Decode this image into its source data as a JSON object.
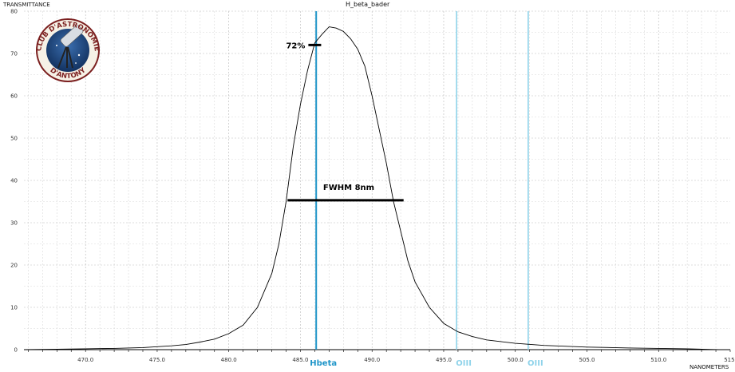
{
  "chart_data": {
    "type": "line",
    "title": "H_beta_bader",
    "ylabel": "TRANSMITTANCE",
    "xlabel": "NANOMETERS",
    "xlim": [
      465.7,
      515.0
    ],
    "ylim": [
      0,
      80
    ],
    "x_ticks": [
      470.0,
      475.0,
      480.0,
      485.0,
      490.0,
      495.0,
      500.0,
      505.0,
      510.0,
      515.0
    ],
    "x_tick_labels": [
      "470.0",
      "475.0",
      "480.0",
      "485.0",
      "490.0",
      "495.0",
      "500.0",
      "505.0",
      "510.0",
      "515."
    ],
    "y_ticks": [
      0,
      10,
      20,
      30,
      40,
      50,
      60,
      70,
      80
    ],
    "y_tick_labels": [
      "0",
      "10",
      "20",
      "30",
      "40",
      "50",
      "60",
      "70",
      "80"
    ],
    "grid": true,
    "series": [
      {
        "x": [
          465.7,
          468,
          470,
          472,
          474,
          476,
          477,
          478,
          479,
          480,
          481,
          482,
          483,
          483.5,
          484,
          484.5,
          485,
          485.5,
          486,
          486.5,
          487,
          487.5,
          488,
          488.5,
          489,
          489.5,
          490,
          490.5,
          491,
          491.5,
          492,
          492.5,
          493,
          494,
          495,
          496,
          497,
          498,
          500,
          502,
          505,
          508,
          510,
          512,
          514.2
        ],
        "y": [
          0,
          0.1,
          0.2,
          0.3,
          0.5,
          0.9,
          1.2,
          1.8,
          2.5,
          3.8,
          5.8,
          10,
          18,
          25,
          35,
          48,
          58,
          66,
          72.5,
          74.5,
          76.3,
          76,
          75.2,
          73.5,
          71,
          67,
          60,
          52,
          44,
          35,
          28,
          21,
          16,
          10,
          6.2,
          4.2,
          3.1,
          2.3,
          1.5,
          1.0,
          0.6,
          0.4,
          0.3,
          0.2,
          0
        ]
      }
    ],
    "vertical_markers": [
      {
        "x": 486.1,
        "label": "Hbeta",
        "color": "#1f95c8"
      },
      {
        "x": 495.9,
        "label": "OIII",
        "color": "#8fd3ea"
      },
      {
        "x": 500.9,
        "label": "OIII",
        "color": "#8fd3ea"
      }
    ],
    "annotations": [
      {
        "text": "72%",
        "x": 486.0,
        "y": 72
      },
      {
        "text": "FWHM 8nm",
        "x_start": 484.1,
        "x_end": 492.2,
        "y": 35.3
      }
    ]
  },
  "logo": {
    "top_text": "CLUB D'ASTRONOMIE",
    "bottom_text": "D'ANTONY"
  }
}
